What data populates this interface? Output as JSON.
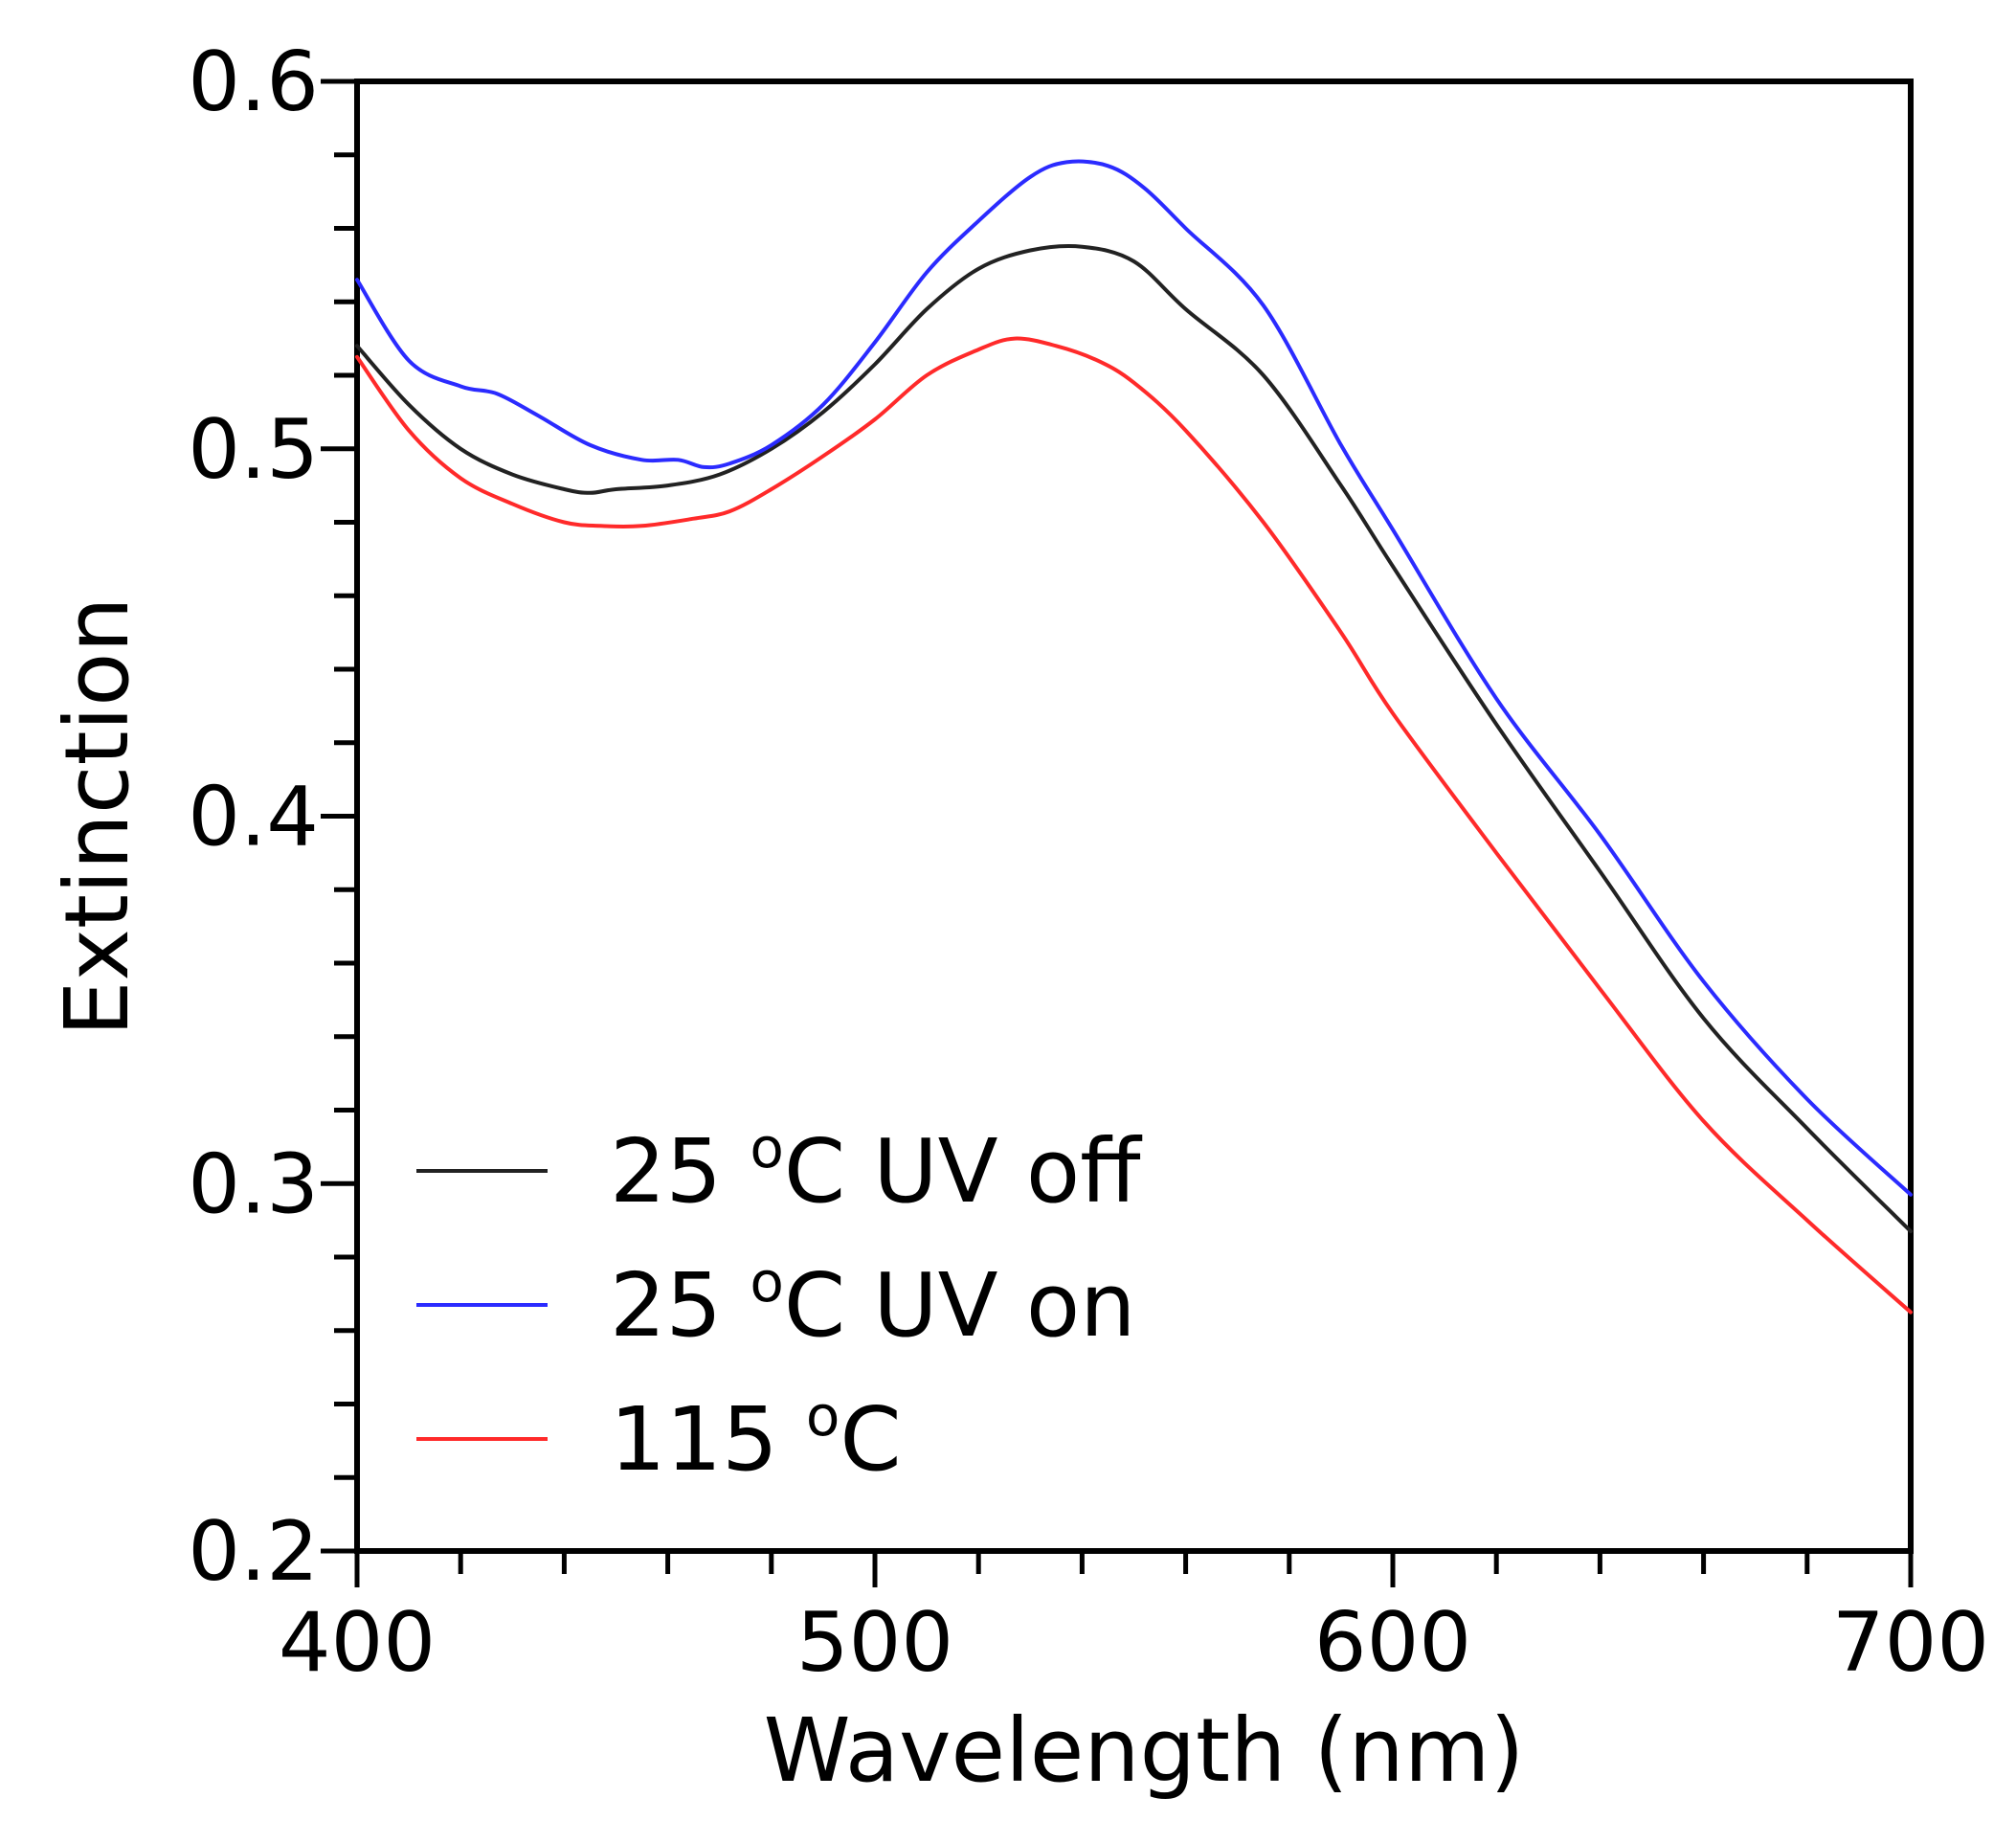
{
  "chart_data": {
    "type": "line",
    "title": "",
    "xlabel": "Wavelength (nm)",
    "ylabel": "Extinction",
    "xlim": [
      400,
      700
    ],
    "ylim": [
      0.2,
      0.6
    ],
    "x_ticks": [
      "400",
      "500",
      "600",
      "700"
    ],
    "y_ticks": [
      "0.2",
      "0.3",
      "0.4",
      "0.5",
      "0.6"
    ],
    "grid": false,
    "legend_position": "bottom-left",
    "series": [
      {
        "name": "25 oC UV off",
        "legend_parts": [
          "25 ",
          "o",
          "C UV off"
        ],
        "color": "#222222",
        "x": [
          400,
          410,
          420,
          430,
          440,
          445,
          450,
          460,
          470,
          480,
          490,
          500,
          510,
          520,
          530,
          540,
          550,
          560,
          575,
          590,
          600,
          620,
          640,
          660,
          680,
          700
        ],
        "y": [
          0.528,
          0.512,
          0.5,
          0.493,
          0.489,
          0.488,
          0.489,
          0.49,
          0.493,
          0.5,
          0.51,
          0.523,
          0.538,
          0.549,
          0.554,
          0.555,
          0.551,
          0.538,
          0.52,
          0.49,
          0.468,
          0.425,
          0.385,
          0.345,
          0.315,
          0.287
        ]
      },
      {
        "name": "25 oC UV on",
        "legend_parts": [
          "25 ",
          "o",
          "C UV on"
        ],
        "color": "#2b2bff",
        "x": [
          400,
          410,
          420,
          427,
          435,
          445,
          455,
          462,
          467,
          472,
          480,
          490,
          500,
          510,
          520,
          530,
          537,
          545,
          552,
          560,
          575,
          590,
          600,
          620,
          640,
          660,
          680,
          700
        ],
        "y": [
          0.546,
          0.524,
          0.517,
          0.515,
          0.509,
          0.501,
          0.497,
          0.497,
          0.495,
          0.496,
          0.501,
          0.512,
          0.529,
          0.548,
          0.562,
          0.574,
          0.578,
          0.577,
          0.571,
          0.56,
          0.539,
          0.501,
          0.478,
          0.432,
          0.395,
          0.355,
          0.323,
          0.297
        ]
      },
      {
        "name": "115 oC",
        "legend_parts": [
          "115 ",
          "o",
          "C"
        ],
        "color": "#ff2a2a",
        "x": [
          400,
          410,
          420,
          430,
          440,
          447,
          455,
          465,
          472,
          480,
          490,
          500,
          510,
          520,
          527,
          535,
          543,
          550,
          560,
          575,
          590,
          600,
          620,
          640,
          660,
          680,
          700
        ],
        "y": [
          0.525,
          0.505,
          0.492,
          0.485,
          0.48,
          0.479,
          0.479,
          0.481,
          0.483,
          0.489,
          0.498,
          0.508,
          0.52,
          0.527,
          0.53,
          0.528,
          0.524,
          0.518,
          0.505,
          0.48,
          0.45,
          0.428,
          0.39,
          0.353,
          0.317,
          0.29,
          0.265
        ]
      }
    ]
  }
}
